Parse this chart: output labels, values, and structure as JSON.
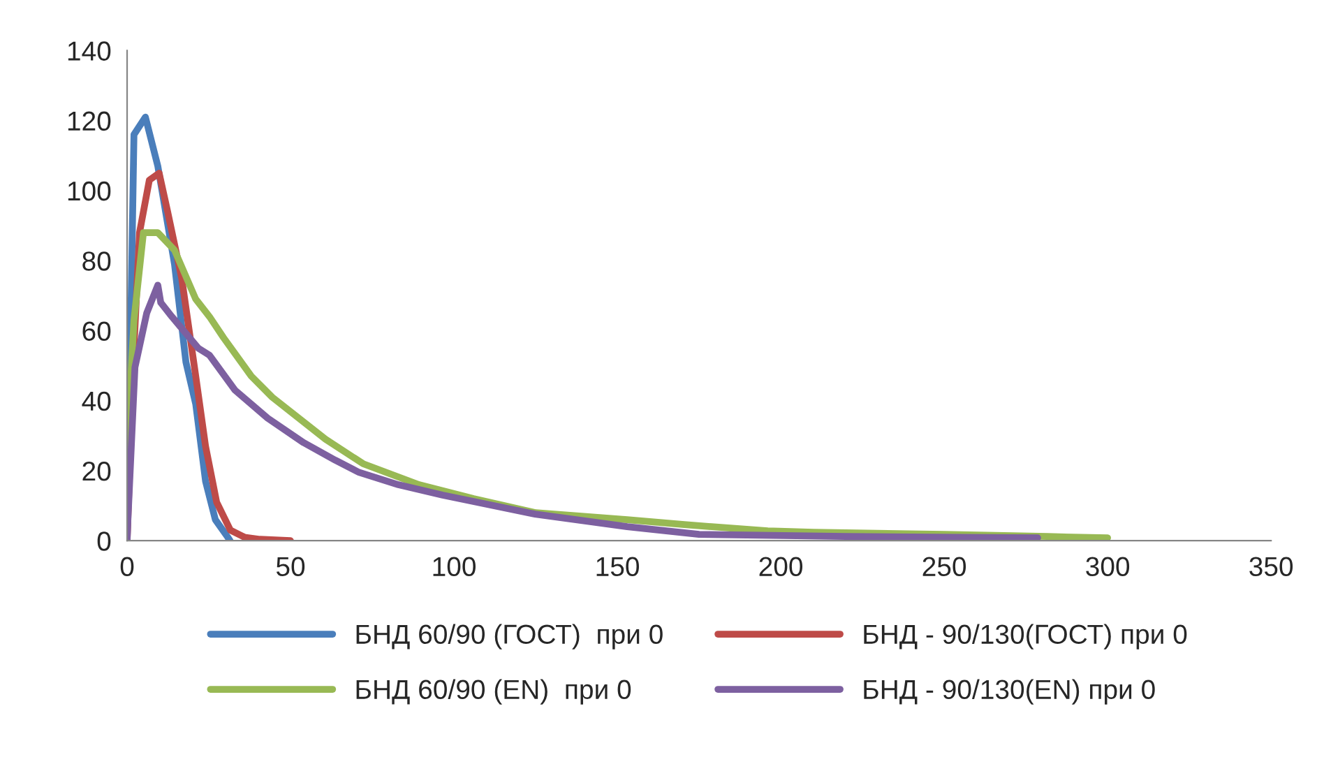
{
  "chart_data": {
    "type": "line",
    "xlim": [
      0,
      350
    ],
    "ylim": [
      0,
      140
    ],
    "xticks": [
      0,
      50,
      100,
      150,
      200,
      250,
      300,
      350
    ],
    "yticks": [
      0,
      20,
      40,
      60,
      80,
      100,
      120,
      140
    ],
    "grid": false,
    "legend": "bottom",
    "marker": "none",
    "line_style": "solid",
    "series": [
      {
        "name": "БНД 60/90 (ГОСТ)  при 0",
        "color": "#4a7ebb",
        "x": [
          0,
          2.1,
          5.6,
          9.4,
          14.5,
          18,
          21,
          24,
          27,
          30.8,
          31.5
        ],
        "values": [
          0,
          116,
          121,
          107,
          79,
          51,
          39,
          17,
          6,
          1,
          0
        ]
      },
      {
        "name": "БНД - 90/130(ГОСТ) при 0",
        "color": "#be4b48",
        "x": [
          0,
          2.1,
          3.8,
          6.8,
          9.8,
          12.4,
          16.7,
          21,
          24,
          27.4,
          31.6,
          35.9,
          40.6,
          50
        ],
        "values": [
          0,
          55,
          88,
          103,
          105,
          94,
          75,
          47,
          27,
          11,
          3,
          1,
          0.4,
          0
        ]
      },
      {
        "name": "БНД 60/90 (EN)  при 0",
        "color": "#98b954",
        "x": [
          0,
          2.1,
          5,
          9.4,
          14.5,
          21,
          25.2,
          29.5,
          38,
          44.4,
          60.7,
          72.2,
          89.3,
          106,
          125,
          153,
          170.5,
          196,
          210,
          250,
          281.6,
          300
        ],
        "values": [
          27,
          63,
          88,
          88,
          83,
          69,
          64,
          58,
          47,
          41,
          29,
          22,
          16,
          12,
          8,
          6,
          4.6,
          2.8,
          2.4,
          1.8,
          1.2,
          0.8
        ]
      },
      {
        "name": "БНД - 90/130(EN) при 0",
        "color": "#7d60a0",
        "x": [
          0,
          0.3,
          2.4,
          6,
          9.4,
          10.3,
          13.7,
          21.8,
          25.2,
          33,
          43,
          54,
          63.7,
          71,
          83,
          96.6,
          124.8,
          153,
          175,
          220,
          278.6
        ],
        "values": [
          0,
          7,
          49.5,
          65,
          73,
          68,
          64,
          55,
          53,
          43,
          35,
          28,
          23,
          19.5,
          16,
          13,
          7.6,
          4,
          1.8,
          1.2,
          0.8
        ]
      }
    ]
  }
}
